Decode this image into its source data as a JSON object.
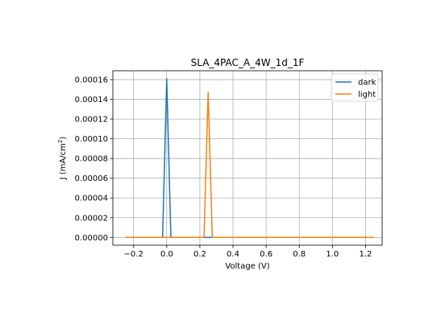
{
  "chart_data": {
    "type": "line",
    "title": "SLA_4PAC_A_4W_1d_1F",
    "xlabel": "Voltage (V)",
    "ylabel_main": "J (mA/cm",
    "ylabel_sup": "2",
    "ylabel_close": ")",
    "xlim": [
      -0.325,
      1.3
    ],
    "ylim": [
      -7.9e-06,
      0.000169
    ],
    "x_ticks": [
      -0.2,
      0.0,
      0.2,
      0.4,
      0.6,
      0.8,
      1.0,
      1.2
    ],
    "x_tick_labels": [
      "−0.2",
      "0.0",
      "0.2",
      "0.4",
      "0.6",
      "0.8",
      "1.0",
      "1.2"
    ],
    "y_ticks": [
      0.0,
      2e-05,
      4e-05,
      6e-05,
      8e-05,
      0.0001,
      0.00012,
      0.00014,
      0.00016
    ],
    "y_tick_labels": [
      "0.00000",
      "0.00002",
      "0.00004",
      "0.00006",
      "0.00008",
      "0.00010",
      "0.00012",
      "0.00014",
      "0.00016"
    ],
    "grid": true,
    "legend_position": "top-right",
    "series": [
      {
        "name": "dark",
        "color": "#1f77b4",
        "x": [
          -0.25,
          -0.025,
          0.0,
          0.025,
          1.25
        ],
        "y": [
          0.0,
          0.0,
          0.000161,
          0.0,
          0.0
        ]
      },
      {
        "name": "light",
        "color": "#ff7f0e",
        "x": [
          -0.25,
          0.225,
          0.25,
          0.275,
          1.25
        ],
        "y": [
          0.0,
          0.0,
          0.000147,
          0.0,
          0.0
        ]
      }
    ]
  }
}
